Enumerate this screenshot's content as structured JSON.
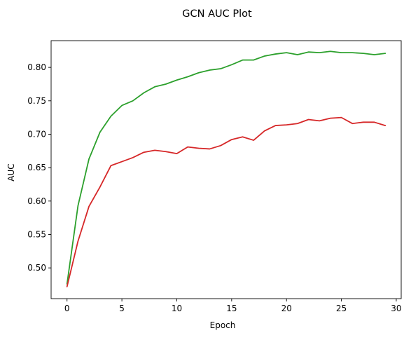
{
  "chart_data": {
    "type": "line",
    "title": "GCN AUC Plot",
    "xlabel": "Epoch",
    "ylabel": "AUC",
    "xlim": [
      -1.45,
      30.45
    ],
    "ylim": [
      0.454,
      0.84
    ],
    "grid": false,
    "legend": "none",
    "x_ticks": [
      0,
      5,
      10,
      15,
      20,
      25,
      30
    ],
    "x_tick_labels": [
      "0",
      "5",
      "10",
      "15",
      "20",
      "25",
      "30"
    ],
    "y_ticks": [
      0.5,
      0.55,
      0.6,
      0.65,
      0.7,
      0.75,
      0.8
    ],
    "y_tick_labels": [
      "0.50",
      "0.55",
      "0.60",
      "0.65",
      "0.70",
      "0.75",
      "0.80"
    ],
    "x": [
      0,
      1,
      2,
      3,
      4,
      5,
      6,
      7,
      8,
      9,
      10,
      11,
      12,
      13,
      14,
      15,
      16,
      17,
      18,
      19,
      20,
      21,
      22,
      23,
      24,
      25,
      26,
      27,
      28,
      29
    ],
    "series": [
      {
        "color": "#2ca02c",
        "values": [
          0.476,
          0.593,
          0.663,
          0.703,
          0.727,
          0.743,
          0.75,
          0.762,
          0.771,
          0.775,
          0.781,
          0.786,
          0.792,
          0.796,
          0.798,
          0.804,
          0.811,
          0.811,
          0.817,
          0.82,
          0.822,
          0.819,
          0.823,
          0.822,
          0.824,
          0.822,
          0.822,
          0.821,
          0.819,
          0.821
        ]
      },
      {
        "color": "#d62728",
        "values": [
          0.472,
          0.54,
          0.592,
          0.621,
          0.653,
          0.659,
          0.665,
          0.673,
          0.676,
          0.674,
          0.671,
          0.681,
          0.679,
          0.678,
          0.683,
          0.692,
          0.696,
          0.691,
          0.705,
          0.713,
          0.714,
          0.716,
          0.722,
          0.72,
          0.724,
          0.725,
          0.716,
          0.718,
          0.718,
          0.713
        ]
      }
    ]
  }
}
